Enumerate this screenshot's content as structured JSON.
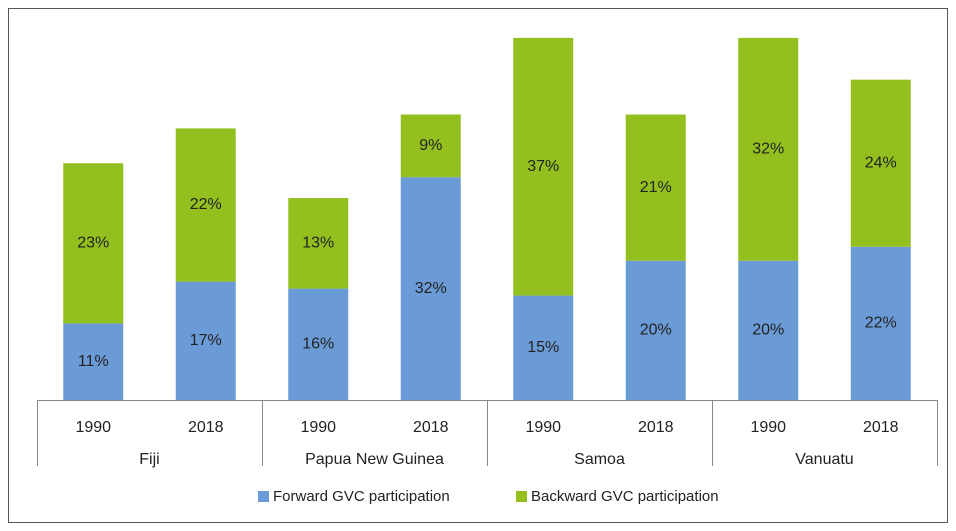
{
  "chart_data": {
    "type": "stacked_bar",
    "categories": [
      "1990",
      "2018",
      "1990",
      "2018",
      "1990",
      "2018",
      "1990",
      "2018"
    ],
    "groups": [
      "Fiji",
      "Papua New Guinea",
      "Samoa",
      "Vanuatu"
    ],
    "series": [
      {
        "name": "Forward GVC participation",
        "color": "#6b9bd6",
        "values": [
          11,
          17,
          16,
          32,
          15,
          20,
          20,
          22
        ],
        "value_labels": [
          "11%",
          "17%",
          "16%",
          "32%",
          "15%",
          "20%",
          "20%",
          "22%"
        ]
      },
      {
        "name": "Backward GVC participation",
        "color": "#93c01f",
        "values": [
          23,
          22,
          13,
          9,
          37,
          21,
          32,
          24
        ],
        "value_labels": [
          "23%",
          "22%",
          "13%",
          "9%",
          "37%",
          "21%",
          "32%",
          "24%"
        ]
      }
    ],
    "ylim": [
      0,
      55
    ]
  }
}
